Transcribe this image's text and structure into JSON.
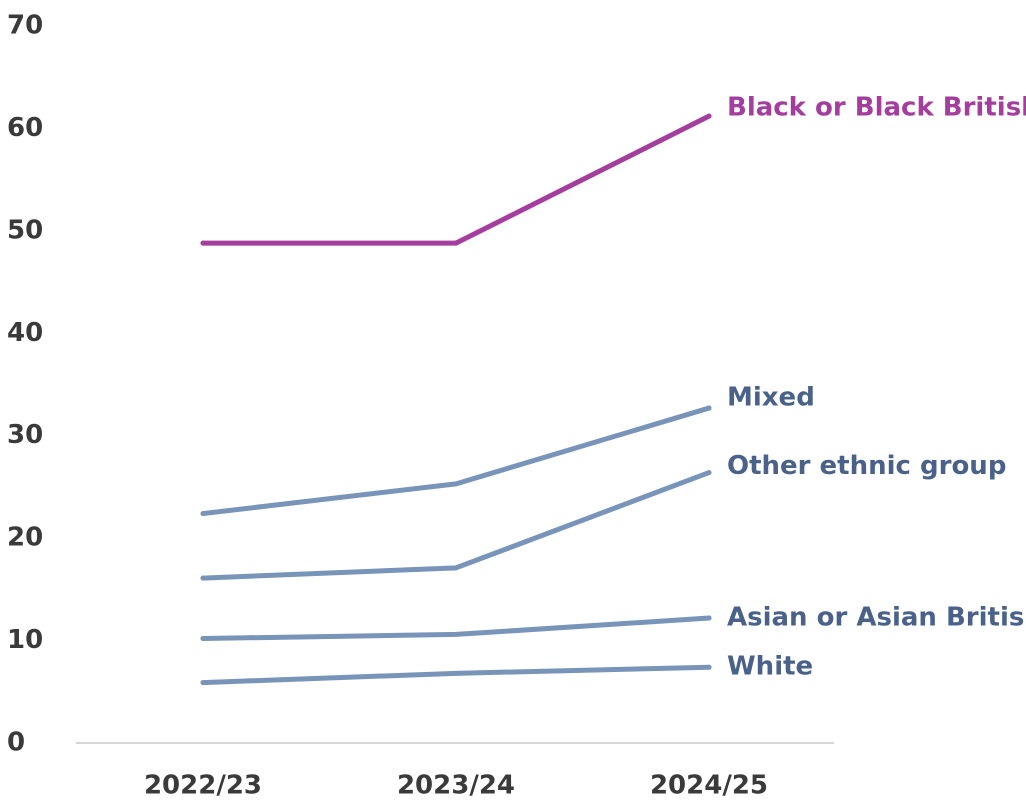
{
  "chart_data": {
    "type": "line",
    "title": "",
    "xlabel": "",
    "ylabel": "",
    "categories": [
      "2022/23",
      "2023/24",
      "2024/25"
    ],
    "ylim": [
      0,
      70
    ],
    "yticks": [
      0,
      10,
      20,
      30,
      40,
      50,
      60,
      70
    ],
    "grid": false,
    "legend": "direct labels at right end of each line",
    "series": [
      {
        "name": "Black or Black British",
        "values": [
          48.8,
          48.8,
          61.2
        ],
        "color": "#a43d9d"
      },
      {
        "name": "Mixed",
        "values": [
          22.4,
          25.3,
          32.7
        ],
        "color": "#7895b9"
      },
      {
        "name": "Other ethnic group",
        "values": [
          16.1,
          17.1,
          26.4
        ],
        "color": "#7895b9"
      },
      {
        "name": "Asian or Asian British",
        "values": [
          10.2,
          10.6,
          12.2
        ],
        "color": "#7895b9"
      },
      {
        "name": "White",
        "values": [
          5.9,
          6.8,
          7.4
        ],
        "color": "#7895b9"
      }
    ],
    "label_colors": {
      "highlight": "#a43d9d",
      "default": "#4a628a"
    },
    "axis_color": "#c8c8c8"
  }
}
